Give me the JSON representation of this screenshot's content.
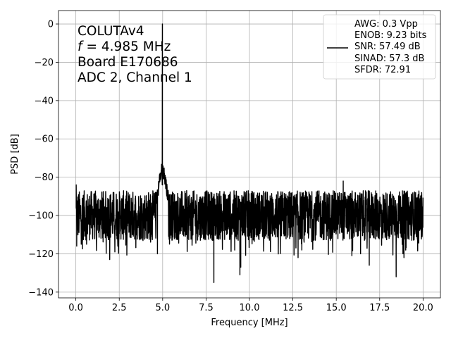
{
  "chart_data": {
    "type": "line",
    "xlabel": "Frequency [MHz]",
    "ylabel": "PSD [dB]",
    "xlim": [
      -1.0,
      21.0
    ],
    "ylim": [
      -143,
      7
    ],
    "xticks": [
      0.0,
      2.5,
      5.0,
      7.5,
      10.0,
      12.5,
      15.0,
      17.5,
      20.0
    ],
    "xtick_labels": [
      "0.0",
      "2.5",
      "5.0",
      "7.5",
      "10.0",
      "12.5",
      "15.0",
      "17.5",
      "20.0"
    ],
    "yticks": [
      0,
      -20,
      -40,
      -60,
      -80,
      -100,
      -120,
      -140
    ],
    "ytick_labels": [
      "0",
      "−20",
      "−40",
      "−60",
      "−80",
      "−100",
      "−120",
      "−140"
    ],
    "grid": true,
    "line_color": "#000000",
    "annotation": {
      "lines": [
        "COLUTAv4",
        "= 4.985 MHz",
        "Board E170686",
        "ADC 2, Channel 1"
      ],
      "f_symbol": "f",
      "placement": "top-left"
    },
    "legend": {
      "placement": "top-right",
      "entries": [
        "AWG: 0.3 Vpp",
        "ENOB: 9.23 bits",
        "SNR: 57.49 dB",
        "SINAD: 57.3 dB",
        "SFDR: 72.91"
      ]
    },
    "series": [
      {
        "noise_floor_db": -98,
        "noise_range_db": [
          -113,
          -87
        ],
        "fundamental": {
          "x": 4.985,
          "y": 0
        },
        "spur_points": [
          {
            "x": 0.05,
            "y": -116
          },
          {
            "x": 1.95,
            "y": -123
          },
          {
            "x": 4.7,
            "y": -120
          },
          {
            "x": 5.1,
            "y": -78
          },
          {
            "x": 7.95,
            "y": -135
          },
          {
            "x": 9.45,
            "y": -131
          },
          {
            "x": 9.5,
            "y": -127
          },
          {
            "x": 12.8,
            "y": -122
          },
          {
            "x": 15.9,
            "y": -121
          },
          {
            "x": 16.4,
            "y": -120
          },
          {
            "x": 16.9,
            "y": -126
          },
          {
            "x": 18.45,
            "y": -132
          },
          {
            "x": 18.9,
            "y": -122
          },
          {
            "x": 15.4,
            "y": -82
          },
          {
            "x": 0.02,
            "y": -84
          }
        ]
      }
    ]
  }
}
